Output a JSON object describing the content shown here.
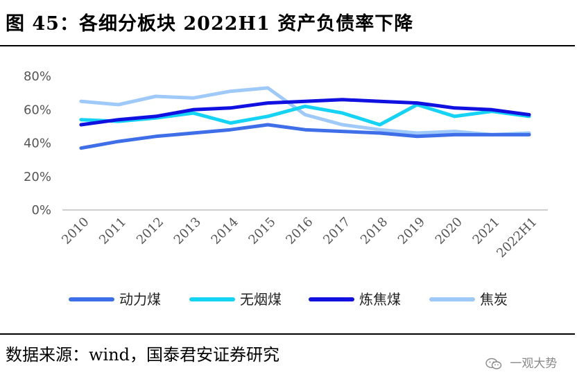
{
  "title": "图 45：各细分板块 2022H1 资产负债率下降",
  "source": "数据来源：wind，国泰君安证券研究",
  "watermark": "一观大势",
  "colors": {
    "动力煤": "#3f6fe8",
    "无烟煤": "#15d3f5",
    "炼焦煤": "#1010e0",
    "焦炭": "#9ec9f8",
    "axis": "#bfbfbf",
    "tick_text": "#555555"
  },
  "chart_data": {
    "type": "line",
    "title": "",
    "xlabel": "",
    "ylabel": "",
    "x": [
      "2010",
      "2011",
      "2012",
      "2013",
      "2014",
      "2015",
      "2016",
      "2017",
      "2018",
      "2019",
      "2020",
      "2021",
      "2022H1"
    ],
    "yticks": [
      "0%",
      "20%",
      "40%",
      "60%",
      "80%"
    ],
    "ylim": [
      0,
      80
    ],
    "grid": false,
    "legend_position": "bottom",
    "series": [
      {
        "name": "动力煤",
        "values": [
          37,
          41,
          44,
          46,
          48,
          51,
          48,
          47,
          46,
          44,
          45,
          45,
          45
        ]
      },
      {
        "name": "无烟煤",
        "values": [
          54,
          53,
          55,
          58,
          52,
          56,
          62,
          58,
          51,
          63,
          56,
          59,
          56
        ]
      },
      {
        "name": "炼焦煤",
        "values": [
          51,
          54,
          56,
          60,
          61,
          64,
          65,
          66,
          65,
          64,
          61,
          60,
          57
        ]
      },
      {
        "name": "焦炭",
        "values": [
          65,
          63,
          68,
          67,
          71,
          73,
          57,
          51,
          48,
          46,
          47,
          45,
          46
        ]
      }
    ]
  }
}
